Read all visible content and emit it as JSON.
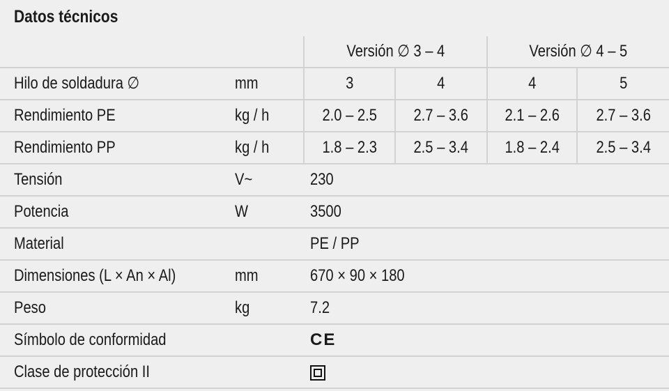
{
  "title": "Datos técnicos",
  "header": [
    "Versión ∅ 3 – 4",
    "Versión ∅ 4 – 5"
  ],
  "multi_rows": [
    {
      "label": "Hilo de soldadura ∅",
      "unit": "mm",
      "values": [
        "3",
        "4",
        "4",
        "5"
      ]
    },
    {
      "label": "Rendimiento PE",
      "unit": "kg / h",
      "values": [
        "2.0 – 2.5",
        "2.7 – 3.6",
        "2.1 – 2.6",
        "2.7 – 3.6"
      ]
    },
    {
      "label": "Rendimiento PP",
      "unit": "kg / h",
      "values": [
        "1.8 – 2.3",
        "2.5 – 3.4",
        "1.8 – 2.4",
        "2.5 – 3.4"
      ]
    }
  ],
  "single_rows": [
    {
      "label": "Tensión",
      "unit": "V~",
      "value": "230"
    },
    {
      "label": "Potencia",
      "unit": "W",
      "value": "3500"
    },
    {
      "label": "Material",
      "unit": "",
      "value": "PE / PP"
    },
    {
      "label": "Dimensiones (L × An × Al)",
      "unit": "mm",
      "value": "670 × 90 × 180"
    },
    {
      "label": "Peso",
      "unit": "kg",
      "value": "7.2"
    },
    {
      "label": "Símbolo de conformidad",
      "unit": "",
      "value": "",
      "icon": "ce-mark-icon",
      "symbol": "CE"
    },
    {
      "label": "Clase de protección II",
      "unit": "",
      "value": "",
      "icon": "protection-class-ii-icon"
    }
  ]
}
